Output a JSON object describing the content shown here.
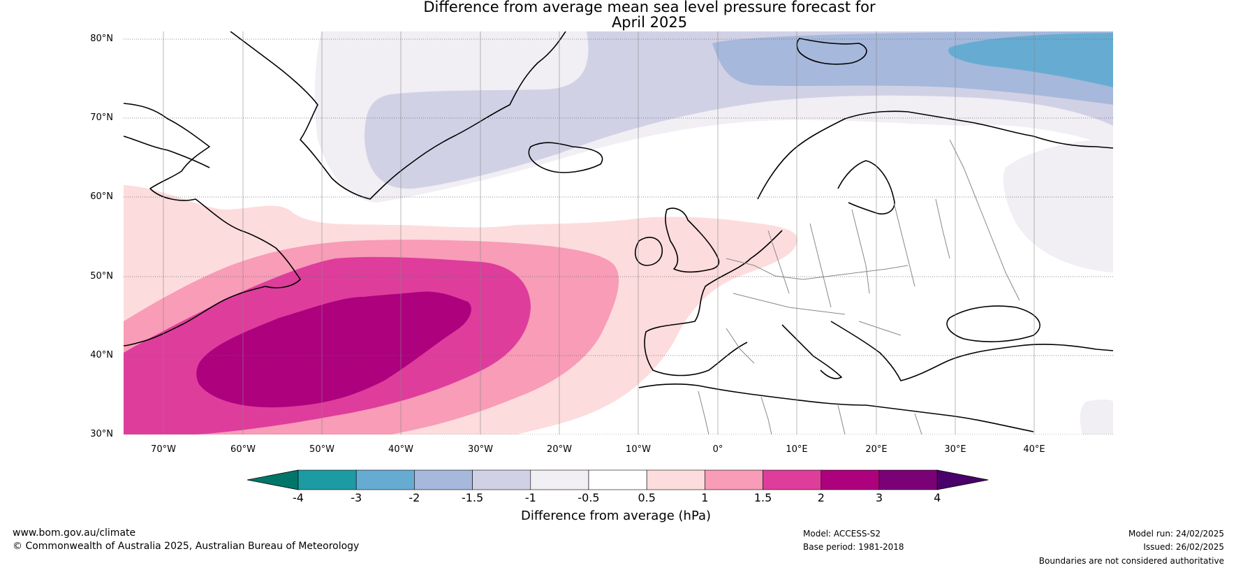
{
  "title": {
    "line1": "Difference from average mean sea level pressure forecast for",
    "line2": "April 2025"
  },
  "map": {
    "latitude_labels": [
      "80°N",
      "70°N",
      "60°N",
      "50°N",
      "40°N",
      "30°N"
    ],
    "longitude_labels": [
      "70°W",
      "60°W",
      "50°W",
      "40°W",
      "30°W",
      "20°W",
      "10°W",
      "0°",
      "10°E",
      "20°E",
      "30°E",
      "40°E"
    ],
    "extent": {
      "lon_min": -75,
      "lon_max": 50,
      "lat_min": 30,
      "lat_max": 81
    }
  },
  "legend": {
    "tick_labels": [
      "-4",
      "-3",
      "-2",
      "-1.5",
      "-1",
      "-0.5",
      "0.5",
      "1",
      "1.5",
      "2",
      "3",
      "4"
    ],
    "colors": [
      "#00766a",
      "#1d9ba3",
      "#66acd2",
      "#a6b8db",
      "#d1d1e6",
      "#f1eef4",
      "#ffffff",
      "#fddcdd",
      "#f89cb7",
      "#de3d9c",
      "#ad017e",
      "#7b0177",
      "#4a006a"
    ],
    "label": "Difference from average (hPa)"
  },
  "footer": {
    "website": "www.bom.gov.au/climate",
    "copyright": "© Commonwealth of Australia 2025, Australian Bureau of Meteorology",
    "model": "Model: ACCESS-S2",
    "base_period": "Base period: 1981-2018",
    "model_run": "Model run: 24/02/2025",
    "issued": "Issued: 26/02/2025",
    "disclaimer": "Boundaries are not considered authoritative"
  }
}
